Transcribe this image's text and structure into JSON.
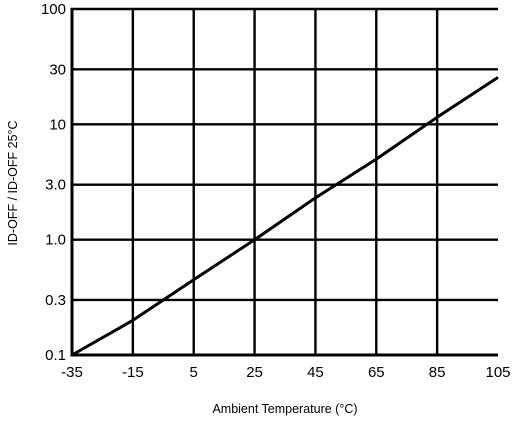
{
  "chart_data": {
    "type": "line",
    "title": "",
    "xlabel": "Ambient Temperature (°C)",
    "ylabel": "ID-OFF / ID-OFF  25°C",
    "xlim": [
      -35,
      105
    ],
    "ylim": [
      0.1,
      100
    ],
    "yscale": "log",
    "grid": true,
    "legend": "none",
    "x_ticks": [
      -35,
      -15,
      5,
      25,
      45,
      65,
      85,
      105
    ],
    "x_tick_labels": [
      "-35",
      "-15",
      "5",
      "25",
      "45",
      "65",
      "85",
      "105"
    ],
    "y_ticks": [
      0.1,
      0.3,
      1.0,
      3.0,
      10,
      30,
      100
    ],
    "y_tick_labels": [
      "0.1",
      "0.3",
      "1.0",
      "3.0",
      "10",
      "30",
      "100"
    ],
    "series": [
      {
        "x": [
          -35,
          -15,
          5,
          25,
          45,
          65,
          85,
          105
        ],
        "y": [
          0.1,
          0.2,
          0.45,
          1.0,
          2.3,
          5.0,
          11.5,
          25.5
        ]
      }
    ],
    "colors": {
      "line": "#000000",
      "grid": "#000000"
    }
  }
}
